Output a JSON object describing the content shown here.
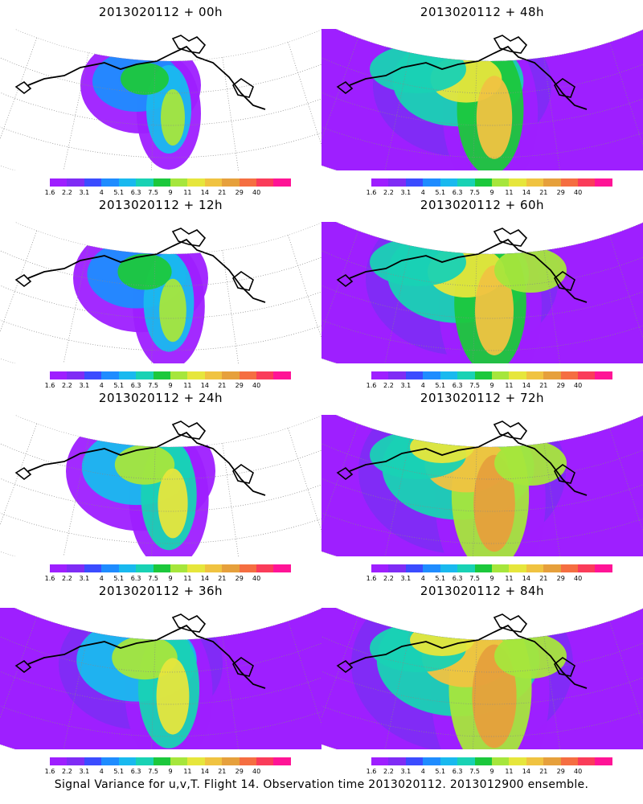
{
  "panels": [
    {
      "title": "2013020112 + 00h",
      "intensity": 0
    },
    {
      "title": "2013020112 + 48h",
      "intensity": 4
    },
    {
      "title": "2013020112 + 12h",
      "intensity": 1
    },
    {
      "title": "2013020112 + 60h",
      "intensity": 5
    },
    {
      "title": "2013020112 + 24h",
      "intensity": 2
    },
    {
      "title": "2013020112 + 72h",
      "intensity": 6
    },
    {
      "title": "2013020112 + 36h",
      "intensity": 3
    },
    {
      "title": "2013020112 + 84h",
      "intensity": 7
    }
  ],
  "colorbar": {
    "labels": [
      "1.6",
      "2.2",
      "3.1",
      "4",
      "5.1",
      "6.3",
      "7.5",
      "9",
      "11",
      "14",
      "21",
      "29",
      "40"
    ],
    "colors": [
      "#9e1fff",
      "#7f2cf5",
      "#3b4cff",
      "#1f8cff",
      "#19b9ef",
      "#19d2b4",
      "#1cc83c",
      "#a6e63c",
      "#e6e63c",
      "#f0c341",
      "#e6a03c",
      "#f56e41",
      "#fa3c5a",
      "#ff1496"
    ]
  },
  "footer": "Signal Variance for u,v,T. Flight 14. Observation time 2013020112. 2013012900 ensemble."
}
